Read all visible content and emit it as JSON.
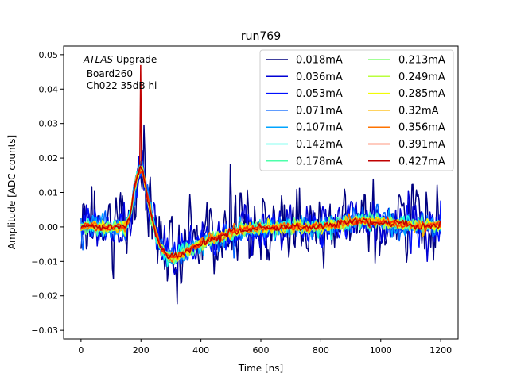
{
  "chart_data": {
    "type": "line",
    "title": "run769",
    "xlabel": "Time [ns]",
    "ylabel": "Amplitude [ADC counts]",
    "xlim": [
      -58,
      1258
    ],
    "ylim": [
      -0.0325,
      0.0525
    ],
    "xticks": [
      0,
      200,
      400,
      600,
      800,
      1000,
      1200
    ],
    "yticks": [
      -0.03,
      -0.02,
      -0.01,
      0.0,
      0.01,
      0.02,
      0.03,
      0.04,
      0.05
    ],
    "xtick_labels": [
      "0",
      "200",
      "400",
      "600",
      "800",
      "1000",
      "1200"
    ],
    "ytick_labels": [
      "−0.03",
      "−0.02",
      "−0.01",
      "0.00",
      "0.01",
      "0.02",
      "0.03",
      "0.04",
      "0.05"
    ],
    "annotation": {
      "line1_italic": "ATLAS",
      "line1_rest": " Upgrade",
      "line2": " Board260",
      "line3": " Ch022 35dB hi"
    },
    "legend_position": "top-right",
    "legend_columns": 2,
    "x_range_ns": [
      0,
      1200
    ],
    "sample_step_ns": 3,
    "pulse_shape": [
      [
        0,
        0.0
      ],
      [
        150,
        0.0
      ],
      [
        165,
        0.004
      ],
      [
        180,
        0.012
      ],
      [
        195,
        0.0165
      ],
      [
        205,
        0.0165
      ],
      [
        215,
        0.012
      ],
      [
        230,
        0.005
      ],
      [
        250,
        -0.002
      ],
      [
        270,
        -0.0065
      ],
      [
        290,
        -0.0085
      ],
      [
        310,
        -0.0088
      ],
      [
        330,
        -0.0082
      ],
      [
        360,
        -0.0065
      ],
      [
        400,
        -0.0048
      ],
      [
        450,
        -0.0032
      ],
      [
        500,
        -0.0018
      ],
      [
        550,
        -0.0008
      ],
      [
        600,
        -0.0003
      ],
      [
        700,
        0.0
      ],
      [
        800,
        0.0
      ],
      [
        850,
        0.0006
      ],
      [
        900,
        0.0015
      ],
      [
        950,
        0.0018
      ],
      [
        1000,
        0.0015
      ],
      [
        1050,
        0.001
      ],
      [
        1100,
        0.0005
      ],
      [
        1200,
        0.0002
      ]
    ],
    "series": [
      {
        "name": "0.018mA",
        "color": "#00007f",
        "noise": 0.0072
      },
      {
        "name": "0.036mA",
        "color": "#0000d5",
        "noise": 0.0042
      },
      {
        "name": "0.053mA",
        "color": "#0010ff",
        "noise": 0.003
      },
      {
        "name": "0.071mA",
        "color": "#0060ff",
        "noise": 0.0024
      },
      {
        "name": "0.107mA",
        "color": "#00a4ff",
        "noise": 0.0019
      },
      {
        "name": "0.142mA",
        "color": "#16ffe1",
        "noise": 0.0016
      },
      {
        "name": "0.178mA",
        "color": "#4dffaa",
        "noise": 0.0014
      },
      {
        "name": "0.213mA",
        "color": "#83ff73",
        "noise": 0.0012
      },
      {
        "name": "0.249mA",
        "color": "#baff3c",
        "noise": 0.0011
      },
      {
        "name": "0.285mA",
        "color": "#f1fc06",
        "noise": 0.001
      },
      {
        "name": "0.32mA",
        "color": "#ffb900",
        "noise": 0.0009
      },
      {
        "name": "0.356mA",
        "color": "#ff7300",
        "noise": 0.0008
      },
      {
        "name": "0.391mA",
        "color": "#ff3000",
        "noise": 0.00075
      },
      {
        "name": "0.427mA",
        "color": "#c00000",
        "noise": 0.0007
      }
    ]
  }
}
